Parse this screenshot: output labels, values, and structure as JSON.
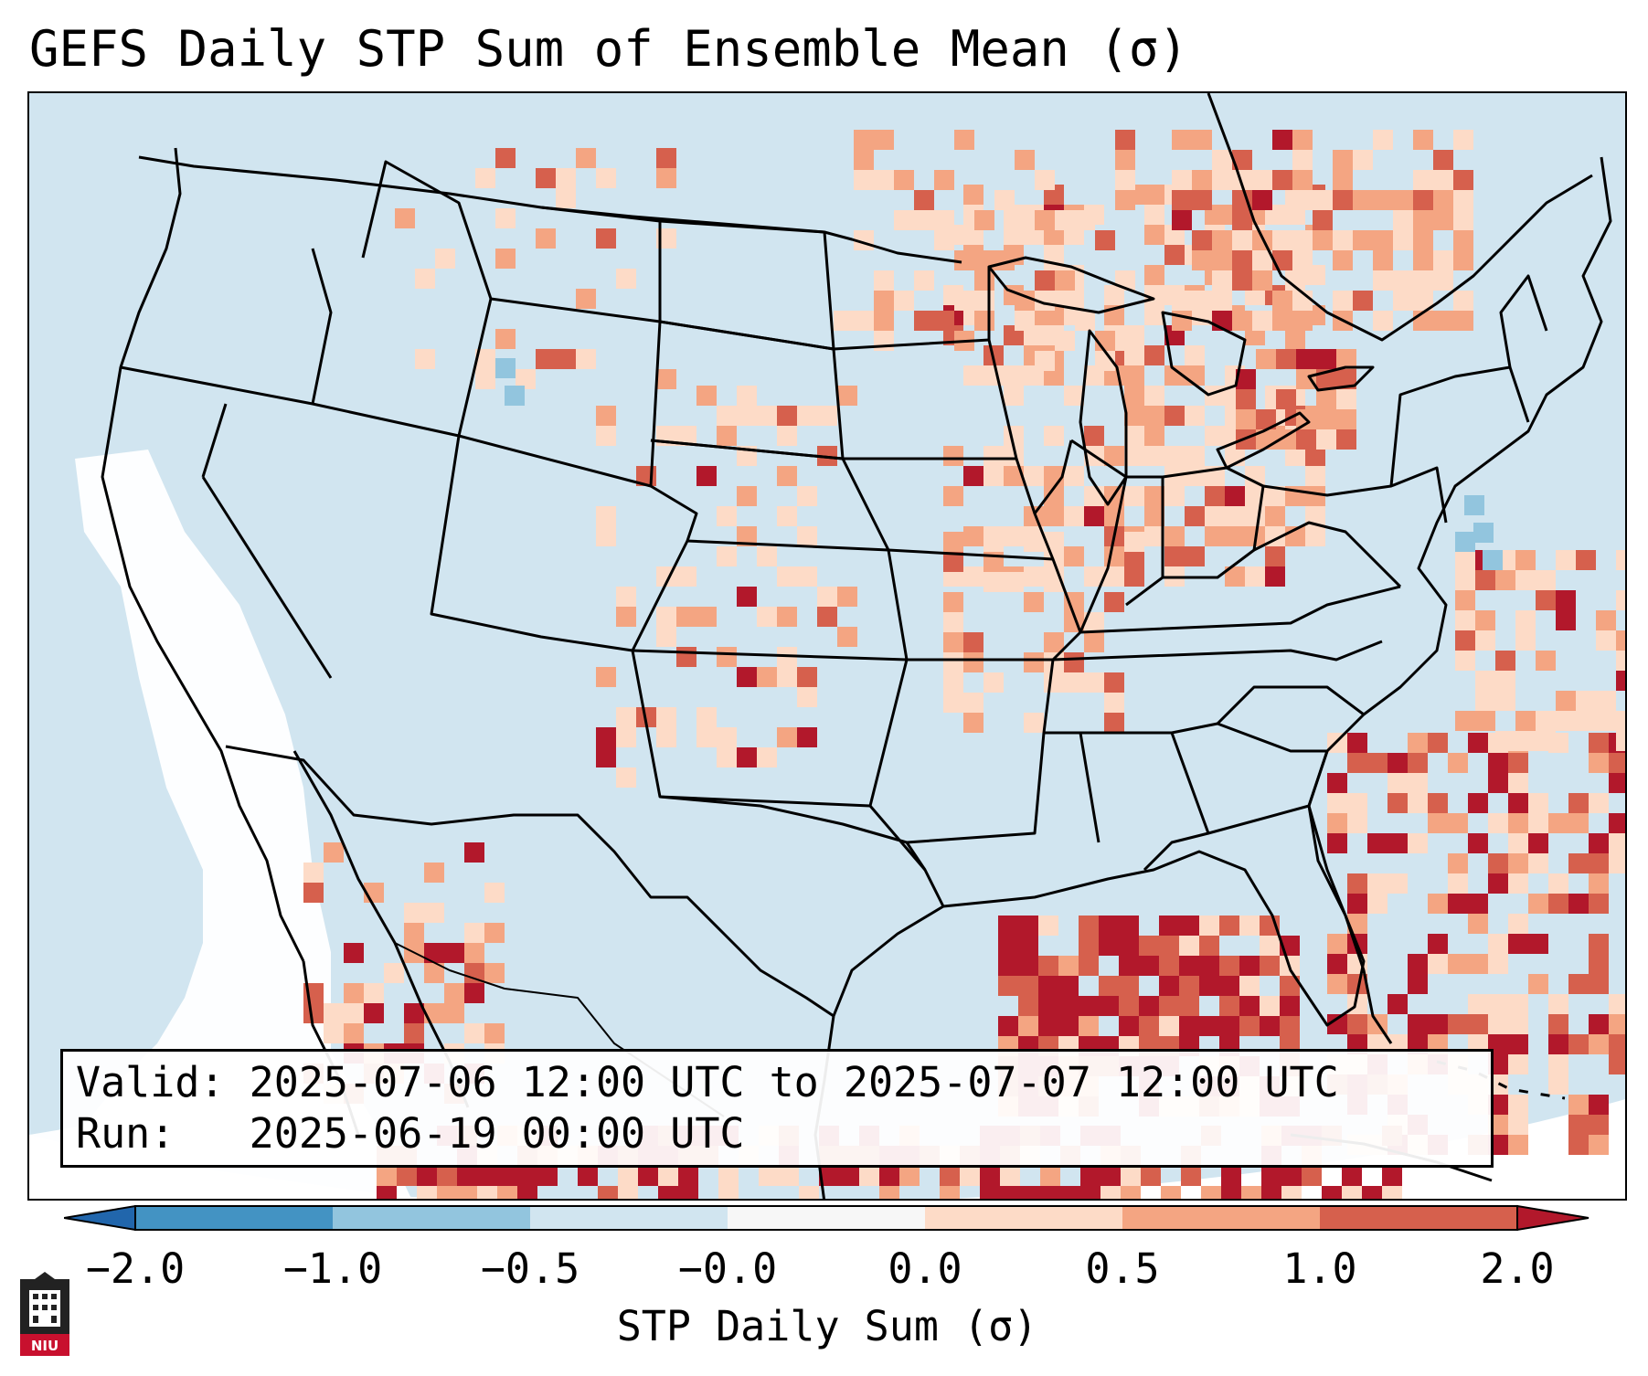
{
  "title": "GEFS Daily STP Sum of Ensemble Mean (σ)",
  "info": {
    "valid_label": "Valid:",
    "valid_value": "2025-07-06 12:00 UTC to 2025-07-07 12:00 UTC",
    "run_label": "Run:",
    "run_value": "2025-06-19 00:00 UTC"
  },
  "colorbar": {
    "ticks": [
      "−2.0",
      "−1.0",
      "−0.5",
      "−0.0",
      "0.0",
      "0.5",
      "1.0",
      "2.0"
    ],
    "label": "STP Daily Sum (σ)",
    "bin_colors": [
      "#4393c3",
      "#92c5de",
      "#d1e5f0",
      "#f7f7f7",
      "#fddbc7",
      "#f4a582",
      "#d6604d"
    ],
    "under_color": "#2166ac",
    "over_color": "#b2182b"
  },
  "map_colors": {
    "ocean_background": "#d1e5f0",
    "neutral_white": "#ffffff",
    "light_red": "#fddbc7",
    "medium_red": "#f4a582",
    "red": "#d6604d",
    "dark_red": "#b2182b",
    "light_blue": "#92c5de",
    "border_line": "#000000"
  },
  "logo": {
    "text": "NIU",
    "color": "#c8102e"
  }
}
